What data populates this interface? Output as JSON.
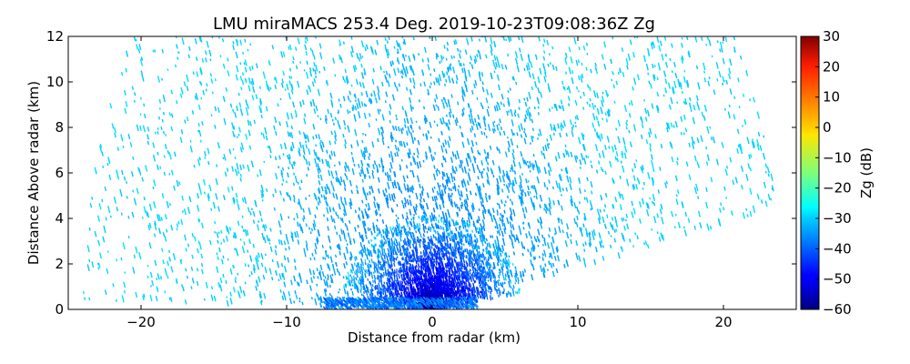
{
  "chart_data": {
    "type": "heatmap",
    "title": "LMU miraMACS 253.4 Deg. 2019-10-23T09:08:36Z  Zg",
    "xlabel": "Distance from radar (km)",
    "ylabel": "Distance Above radar  (km)",
    "xlim": [
      -25,
      25
    ],
    "ylim": [
      0,
      12
    ],
    "x_ticks": [
      -20,
      -10,
      0,
      10,
      20
    ],
    "x_tick_labels": [
      "−20",
      "−10",
      "0",
      "10",
      "20"
    ],
    "y_ticks": [
      0,
      2,
      4,
      6,
      8,
      10,
      12
    ],
    "y_tick_labels": [
      "0",
      "2",
      "4",
      "6",
      "8",
      "10",
      "12"
    ],
    "colorbar": {
      "label": "Zg (dB)",
      "range": [
        -60,
        30
      ],
      "colormap": "jet",
      "ticks": [
        -60,
        -50,
        -40,
        -30,
        -20,
        -10,
        0,
        10,
        20,
        30
      ],
      "tick_labels": [
        "−60",
        "−50",
        "−40",
        "−30",
        "−20",
        "−10",
        "0",
        "10",
        "20",
        "30"
      ]
    },
    "scan": {
      "azimuth_deg": 253.4,
      "max_range_km": 24,
      "min_elevation_deg_left": 1,
      "min_elevation_deg_right": 10.5,
      "background_reflectivity_dB": -30,
      "near_radar_min_reflectivity_dB": -58
    },
    "grid": false
  }
}
